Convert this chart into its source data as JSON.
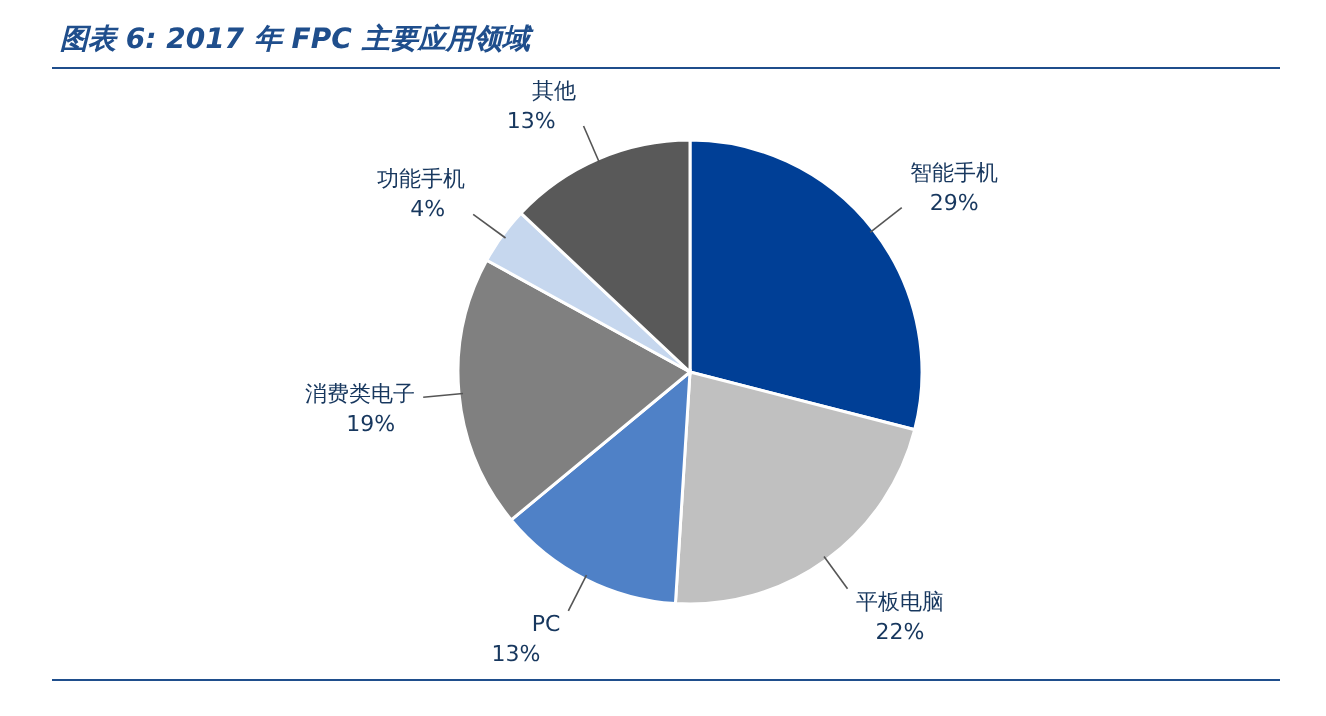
{
  "chart_data": {
    "type": "pie",
    "title": "图表 6:  2017 年 FPC 主要应用领域",
    "categories": [
      "智能手机",
      "平板电脑",
      "PC",
      "消费类电子",
      "功能手机",
      "其他"
    ],
    "values": [
      29,
      22,
      13,
      19,
      4,
      13
    ],
    "value_labels": [
      "29%",
      "22%",
      "13%",
      "19%",
      "4%",
      "13%"
    ],
    "colors": [
      "#003f96",
      "#c0c0c0",
      "#4f81c7",
      "#808080",
      "#c6d7ee",
      "#595959"
    ]
  }
}
